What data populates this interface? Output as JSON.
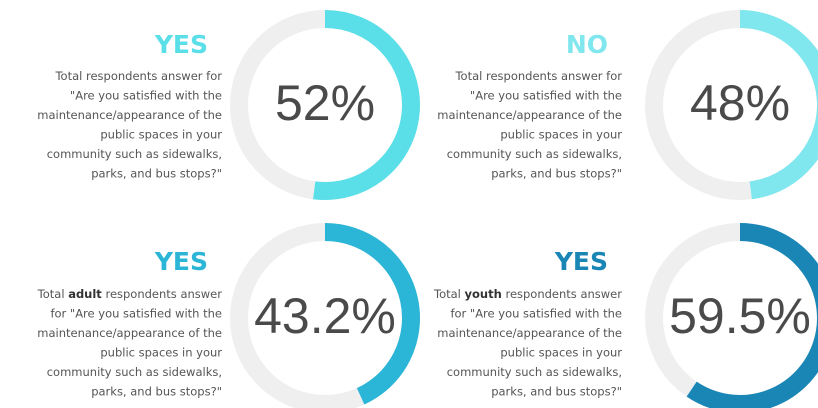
{
  "chart_data": [
    {
      "type": "donut",
      "title": "YES",
      "value": 52,
      "value_label": "52%",
      "color": "#5adfe9",
      "track_color": "#efefef",
      "title_color": "#5adfe9",
      "description": [
        [
          {
            "text": "Total respondents answer for"
          }
        ],
        [
          {
            "text": "\"Are you satisfied with the"
          }
        ],
        [
          {
            "text": "maintenance/appearance of the"
          }
        ],
        [
          {
            "text": "public spaces in your"
          }
        ],
        [
          {
            "text": "community such as sidewalks,"
          }
        ],
        [
          {
            "text": "parks, and bus stops?\""
          }
        ]
      ]
    },
    {
      "type": "donut",
      "title": "NO",
      "value": 48,
      "value_label": "48%",
      "color": "#80e7ee",
      "track_color": "#efefef",
      "title_color": "#80e7ee",
      "description": [
        [
          {
            "text": "Total respondents answer for"
          }
        ],
        [
          {
            "text": "\"Are you satisfied with the"
          }
        ],
        [
          {
            "text": "maintenance/appearance of the"
          }
        ],
        [
          {
            "text": "public spaces in your"
          }
        ],
        [
          {
            "text": "community such as sidewalks,"
          }
        ],
        [
          {
            "text": "parks, and bus stops?\""
          }
        ]
      ]
    },
    {
      "type": "donut",
      "title": "YES",
      "value": 43.2,
      "value_label": "43.2%",
      "color": "#2bb5d6",
      "track_color": "#efefef",
      "title_color": "#2bb5d6",
      "description": [
        [
          {
            "text": "Total "
          },
          {
            "text": "adult",
            "bold": true
          },
          {
            "text": " respondents answer"
          }
        ],
        [
          {
            "text": "for \"Are you satisfied with the"
          }
        ],
        [
          {
            "text": "maintenance/appearance of the"
          }
        ],
        [
          {
            "text": "public spaces in your"
          }
        ],
        [
          {
            "text": "community such as sidewalks,"
          }
        ],
        [
          {
            "text": "parks, and bus stops?\""
          }
        ]
      ]
    },
    {
      "type": "donut",
      "title": "YES",
      "value": 59.5,
      "value_label": "59.5%",
      "color": "#1a86b6",
      "track_color": "#efefef",
      "title_color": "#1a86b6",
      "description": [
        [
          {
            "text": "Total "
          },
          {
            "text": "youth",
            "bold": true
          },
          {
            "text": " respondents answer"
          }
        ],
        [
          {
            "text": "for \"Are you satisfied with the"
          }
        ],
        [
          {
            "text": "maintenance/appearance of the"
          }
        ],
        [
          {
            "text": "public spaces in your"
          }
        ],
        [
          {
            "text": "community such as sidewalks,"
          }
        ],
        [
          {
            "text": "parks, and bus stops?\""
          }
        ]
      ]
    }
  ]
}
